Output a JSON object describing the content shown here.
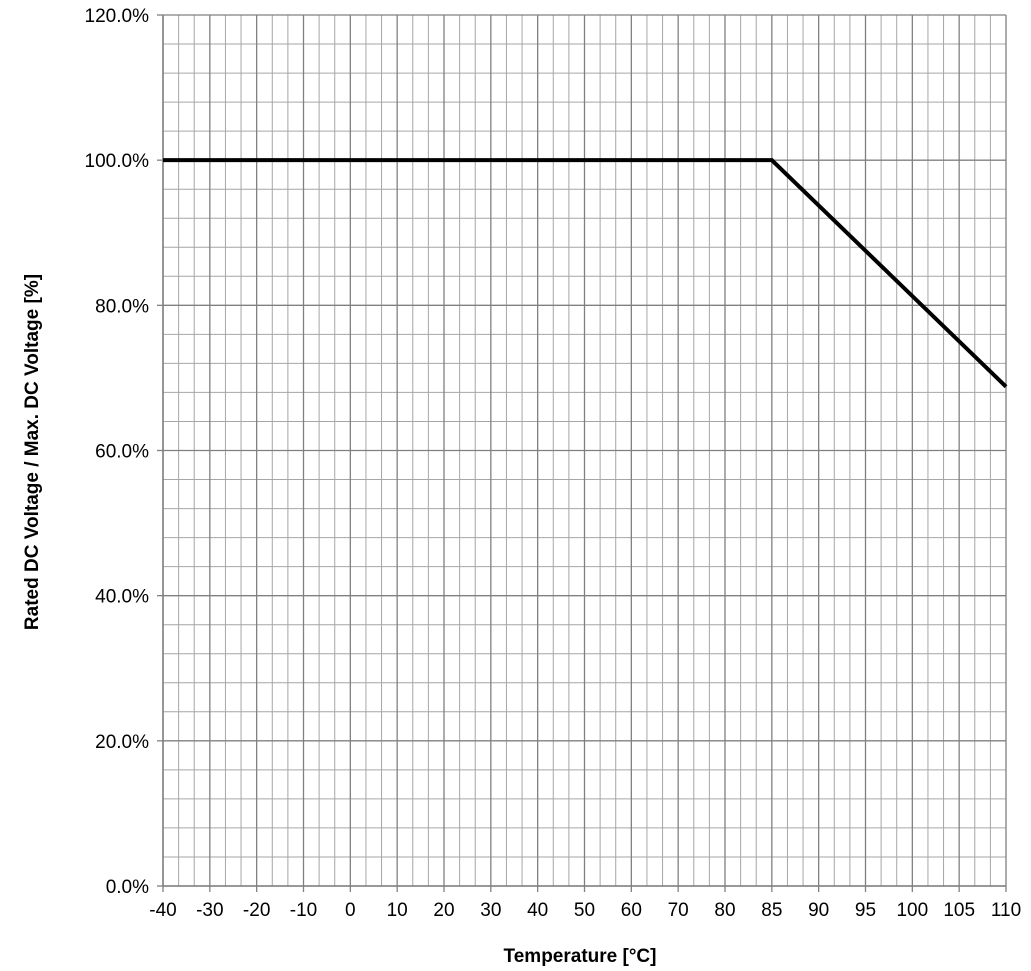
{
  "chart_data": {
    "type": "line",
    "title": "",
    "xlabel": "Temperature [°C]",
    "ylabel": "Rated DC Voltage / Max. DC Voltage [%]",
    "x_tick_labels": [
      "-40",
      "-30",
      "-20",
      "-10",
      "0",
      "10",
      "20",
      "30",
      "40",
      "50",
      "60",
      "70",
      "80",
      "85",
      "90",
      "95",
      "100",
      "105",
      "110"
    ],
    "y_tick_labels": [
      "0.0%",
      "20.0%",
      "40.0%",
      "60.0%",
      "80.0%",
      "100.0%",
      "120.0%"
    ],
    "y_ticks": [
      0,
      20,
      40,
      60,
      80,
      100,
      120
    ],
    "ylim": [
      0,
      120
    ],
    "grid": true,
    "legend": "none",
    "series": [
      {
        "points": [
          {
            "x": "-40",
            "y": 100
          },
          {
            "x": "85",
            "y": 100
          },
          {
            "x": "110",
            "y": 68.8
          }
        ],
        "color": "#000000"
      }
    ],
    "colors": {
      "major_grid": "#808080",
      "minor_grid": "#a6a6a6",
      "line": "#000000"
    }
  }
}
